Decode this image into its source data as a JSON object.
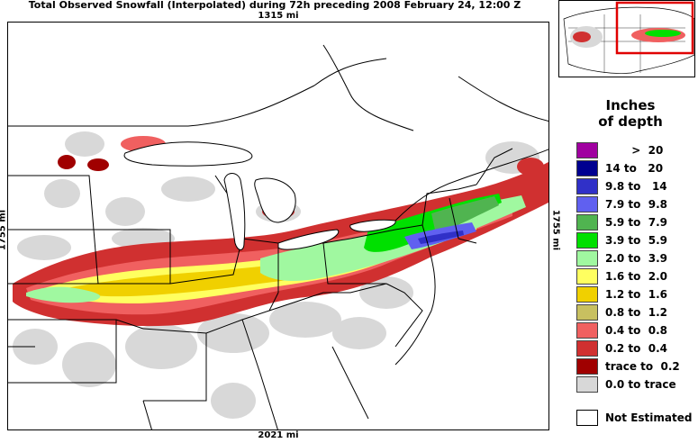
{
  "title": "Total Observed Snowfall (Interpolated) during 72h preceding 2008 February 24, 12:00 Z",
  "distances": {
    "top": "1315 mi",
    "bottom": "2021 mi",
    "left": "1755 mi",
    "right": "1755 mi"
  },
  "legend": {
    "title_line1": "Inches",
    "title_line2": "of depth",
    "items": [
      {
        "label": "       >  20",
        "color": "#a000a0"
      },
      {
        "label": "14 to   20",
        "color": "#000090"
      },
      {
        "label": "9.8 to   14",
        "color": "#3030c8"
      },
      {
        "label": "7.9 to  9.8",
        "color": "#6060f0"
      },
      {
        "label": "5.9 to  7.9",
        "color": "#50b450"
      },
      {
        "label": "3.9 to  5.9",
        "color": "#00e000"
      },
      {
        "label": "2.0 to  3.9",
        "color": "#a0f8a0"
      },
      {
        "label": "1.6 to  2.0",
        "color": "#ffff60"
      },
      {
        "label": "1.2 to  1.6",
        "color": "#f0d000"
      },
      {
        "label": "0.8 to  1.2",
        "color": "#c8c060"
      },
      {
        "label": "0.4 to  0.8",
        "color": "#f06060"
      },
      {
        "label": "0.2 to  0.4",
        "color": "#d03030"
      },
      {
        "label": "trace to  0.2",
        "color": "#a00000"
      },
      {
        "label": "0.0 to trace",
        "color": "#d8d8d8"
      }
    ],
    "not_estimated": "Not Estimated"
  },
  "colors": {
    "water": "#ffffff",
    "inset_highlight": "#e00000"
  }
}
